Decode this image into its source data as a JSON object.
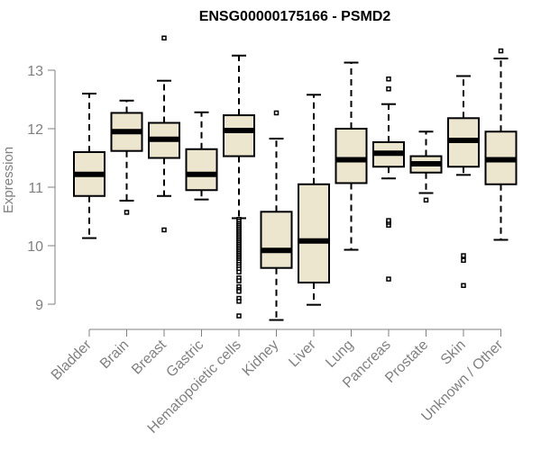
{
  "chart_data": {
    "type": "boxplot",
    "title": "ENSG00000175166 - PSMD2",
    "xlabel": "",
    "ylabel": "Expression",
    "ylim": [
      8.7,
      13.6
    ],
    "yticks": [
      9,
      10,
      11,
      12,
      13
    ],
    "categories": [
      "Bladder",
      "Brain",
      "Breast",
      "Gastric",
      "Hematopoietic cells",
      "Kidney",
      "Liver",
      "Lung",
      "Pancreas",
      "Prostate",
      "Skin",
      "Unknown / Other"
    ],
    "boxes": [
      {
        "whisker_low": 10.13,
        "q1": 10.85,
        "median": 11.22,
        "q3": 11.6,
        "whisker_high": 12.6,
        "outliers": []
      },
      {
        "whisker_low": 10.77,
        "q1": 11.62,
        "median": 11.95,
        "q3": 12.27,
        "whisker_high": 12.48,
        "outliers": [
          10.57
        ]
      },
      {
        "whisker_low": 10.85,
        "q1": 11.5,
        "median": 11.82,
        "q3": 12.1,
        "whisker_high": 12.82,
        "outliers": [
          10.27,
          13.55
        ]
      },
      {
        "whisker_low": 10.79,
        "q1": 10.95,
        "median": 11.22,
        "q3": 11.65,
        "whisker_high": 12.28,
        "outliers": []
      },
      {
        "whisker_low": 10.47,
        "q1": 11.53,
        "median": 11.97,
        "q3": 12.23,
        "whisker_high": 13.25,
        "outliers": [
          10.45,
          10.42,
          10.38,
          10.35,
          10.32,
          10.29,
          10.26,
          10.23,
          10.2,
          10.17,
          10.14,
          10.11,
          10.08,
          10.05,
          10.02,
          9.99,
          9.96,
          9.93,
          9.9,
          9.87,
          9.84,
          9.81,
          9.78,
          9.75,
          9.72,
          9.68,
          9.64,
          9.6,
          9.55,
          9.45,
          9.4,
          9.3,
          9.25,
          9.22,
          9.1,
          9.05,
          8.8
        ]
      },
      {
        "whisker_low": 8.73,
        "q1": 9.62,
        "median": 9.92,
        "q3": 10.58,
        "whisker_high": 11.83,
        "outliers": [
          12.27
        ]
      },
      {
        "whisker_low": 8.99,
        "q1": 9.37,
        "median": 10.08,
        "q3": 11.05,
        "whisker_high": 12.58,
        "outliers": []
      },
      {
        "whisker_low": 9.93,
        "q1": 11.07,
        "median": 11.47,
        "q3": 12.0,
        "whisker_high": 13.13,
        "outliers": []
      },
      {
        "whisker_low": 11.15,
        "q1": 11.35,
        "median": 11.58,
        "q3": 11.77,
        "whisker_high": 12.42,
        "outliers": [
          9.43,
          10.35,
          10.4,
          10.43,
          12.68,
          12.85
        ]
      },
      {
        "whisker_low": 10.9,
        "q1": 11.25,
        "median": 11.4,
        "q3": 11.53,
        "whisker_high": 11.95,
        "outliers": [
          10.78
        ]
      },
      {
        "whisker_low": 11.21,
        "q1": 11.35,
        "median": 11.8,
        "q3": 12.18,
        "whisker_high": 12.9,
        "outliers": [
          9.32,
          9.75,
          9.83
        ]
      },
      {
        "whisker_low": 10.1,
        "q1": 11.05,
        "median": 11.47,
        "q3": 11.95,
        "whisker_high": 13.2,
        "outliers": [
          13.33
        ]
      }
    ],
    "colors": {
      "box_fill": "#ece6cf",
      "stroke": "#000000",
      "axis": "#808080"
    }
  }
}
